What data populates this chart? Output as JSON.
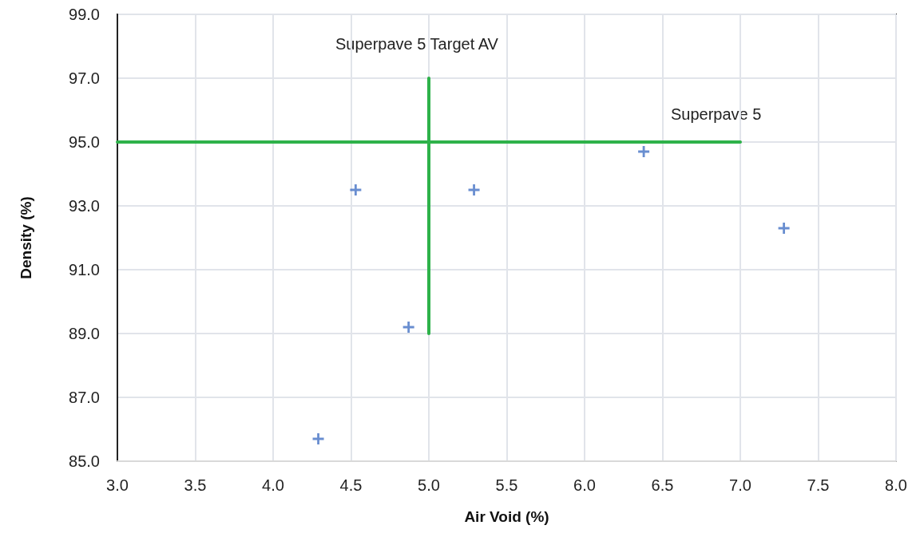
{
  "chart_data": {
    "type": "scatter",
    "xlabel": "Air Void (%)",
    "ylabel": "Density (%)",
    "xlim": [
      3,
      8
    ],
    "xticks": [
      {
        "value": 3,
        "label": "3.0"
      },
      {
        "value": 3.5,
        "label": "3.5"
      },
      {
        "value": 4,
        "label": "4.0"
      },
      {
        "value": 4.5,
        "label": "4.5"
      },
      {
        "value": 5,
        "label": "5.0"
      },
      {
        "value": 5.5,
        "label": "5.5"
      },
      {
        "value": 6,
        "label": "6.0"
      },
      {
        "value": 6.5,
        "label": "6.5"
      },
      {
        "value": 7,
        "label": "7.0"
      },
      {
        "value": 7.5,
        "label": "7.5"
      },
      {
        "value": 8,
        "label": "8.0"
      }
    ],
    "ylim": [
      85,
      99
    ],
    "yticks": [
      {
        "value": 85,
        "label": "85.0"
      },
      {
        "value": 87,
        "label": "87.0"
      },
      {
        "value": 89,
        "label": "89.0"
      },
      {
        "value": 91,
        "label": "91.0"
      },
      {
        "value": 93,
        "label": "93.0"
      },
      {
        "value": 95,
        "label": "95.0"
      },
      {
        "value": 97,
        "label": "97.0"
      },
      {
        "value": 99,
        "label": "99.0"
      }
    ],
    "grid": true,
    "series": [
      {
        "marker": "cross",
        "color": "#4472c4",
        "x": [
          4.29,
          4.53,
          4.87,
          5.29,
          6.38,
          7.28
        ],
        "values": [
          85.7,
          93.5,
          89.2,
          93.5,
          94.7,
          92.3
        ]
      },
      {
        "type": "line",
        "marker": "none",
        "line_style": "solid",
        "color": "#2eb24a",
        "x": [
          3,
          7
        ],
        "values": [
          95,
          95
        ]
      },
      {
        "type": "line",
        "marker": "none",
        "line_style": "solid",
        "color": "#2eb24a",
        "x": [
          5,
          5
        ],
        "values": [
          89,
          97
        ]
      }
    ],
    "annotations": [
      "Superpave 5 Target AV",
      "Superpave 5"
    ]
  }
}
